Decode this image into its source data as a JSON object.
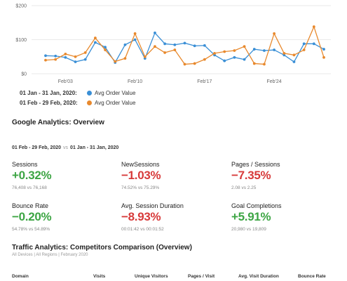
{
  "chart_data": {
    "type": "line",
    "y_ticks": [
      "$200",
      "$100",
      "$0"
    ],
    "ylim": [
      0,
      200
    ],
    "x_ticks": [
      "Feb'03",
      "Feb'10",
      "Feb'17",
      "Feb'24"
    ],
    "x_tick_days": [
      3,
      10,
      17,
      24
    ],
    "days": [
      1,
      2,
      3,
      4,
      5,
      6,
      7,
      8,
      9,
      10,
      11,
      12,
      13,
      14,
      15,
      16,
      17,
      18,
      19,
      20,
      21,
      22,
      23,
      24,
      25,
      26,
      27,
      28,
      29
    ],
    "series": [
      {
        "name": "Avg Order Value",
        "period": "01 Jan - 31 Jan, 2020",
        "color": "#3a8fd6",
        "values": [
          53,
          52,
          48,
          35,
          42,
          92,
          78,
          33,
          85,
          100,
          45,
          120,
          88,
          85,
          90,
          82,
          83,
          55,
          38,
          48,
          42,
          72,
          68,
          70,
          55,
          35,
          88,
          88,
          72
        ]
      },
      {
        "name": "Avg Order Value",
        "period": "01 Feb - 29 Feb, 2020",
        "color": "#e8892d",
        "values": [
          40,
          42,
          58,
          50,
          62,
          105,
          70,
          36,
          45,
          118,
          50,
          80,
          62,
          70,
          28,
          30,
          42,
          60,
          65,
          68,
          80,
          30,
          28,
          118,
          60,
          55,
          70,
          138,
          48
        ]
      }
    ]
  },
  "legend": [
    {
      "range": "01 Jan - 31 Jan, 2020:",
      "label": "Avg Order Value",
      "color": "#3a8fd6"
    },
    {
      "range": "01 Feb - 29 Feb, 2020:",
      "label": "Avg Order Value",
      "color": "#e8892d"
    }
  ],
  "overview": {
    "title": "Google Analytics: Overview",
    "period_current": "01 Feb - 29 Feb, 2020",
    "vs": "vs",
    "period_previous": "01 Jan - 31 Jan, 2020",
    "metrics": [
      {
        "label": "Sessions",
        "value": "+0.32%",
        "compare": "76,408 vs 76,168",
        "trend": "pos"
      },
      {
        "label": "NewSessions",
        "value": "−1.03%",
        "compare": "74.52% vs 75.29%",
        "trend": "neg"
      },
      {
        "label": "Pages / Sessions",
        "value": "−7.35%",
        "compare": "2.08 vs 2.25",
        "trend": "neg"
      },
      {
        "label": "Bounce Rate",
        "value": "−0.20%",
        "compare": "54.78% vs 54.89%",
        "trend": "pos"
      },
      {
        "label": "Avg. Session Duration",
        "value": "−8.93%",
        "compare": "00:01:42 vs 00:01:52",
        "trend": "neg"
      },
      {
        "label": "Goal Completions",
        "value": "+5.91%",
        "compare": "20,980 vs 19,809",
        "trend": "pos"
      }
    ]
  },
  "traffic": {
    "title": "Traffic Analytics: Competitors Comparison (Overview)",
    "filters": "All Devices | All Regions | February 2020",
    "columns": [
      "Domain",
      "Visits",
      "Unique Visitors",
      "Pages / Visit",
      "Avg. Visit Duration",
      "Bounce Rate"
    ]
  }
}
